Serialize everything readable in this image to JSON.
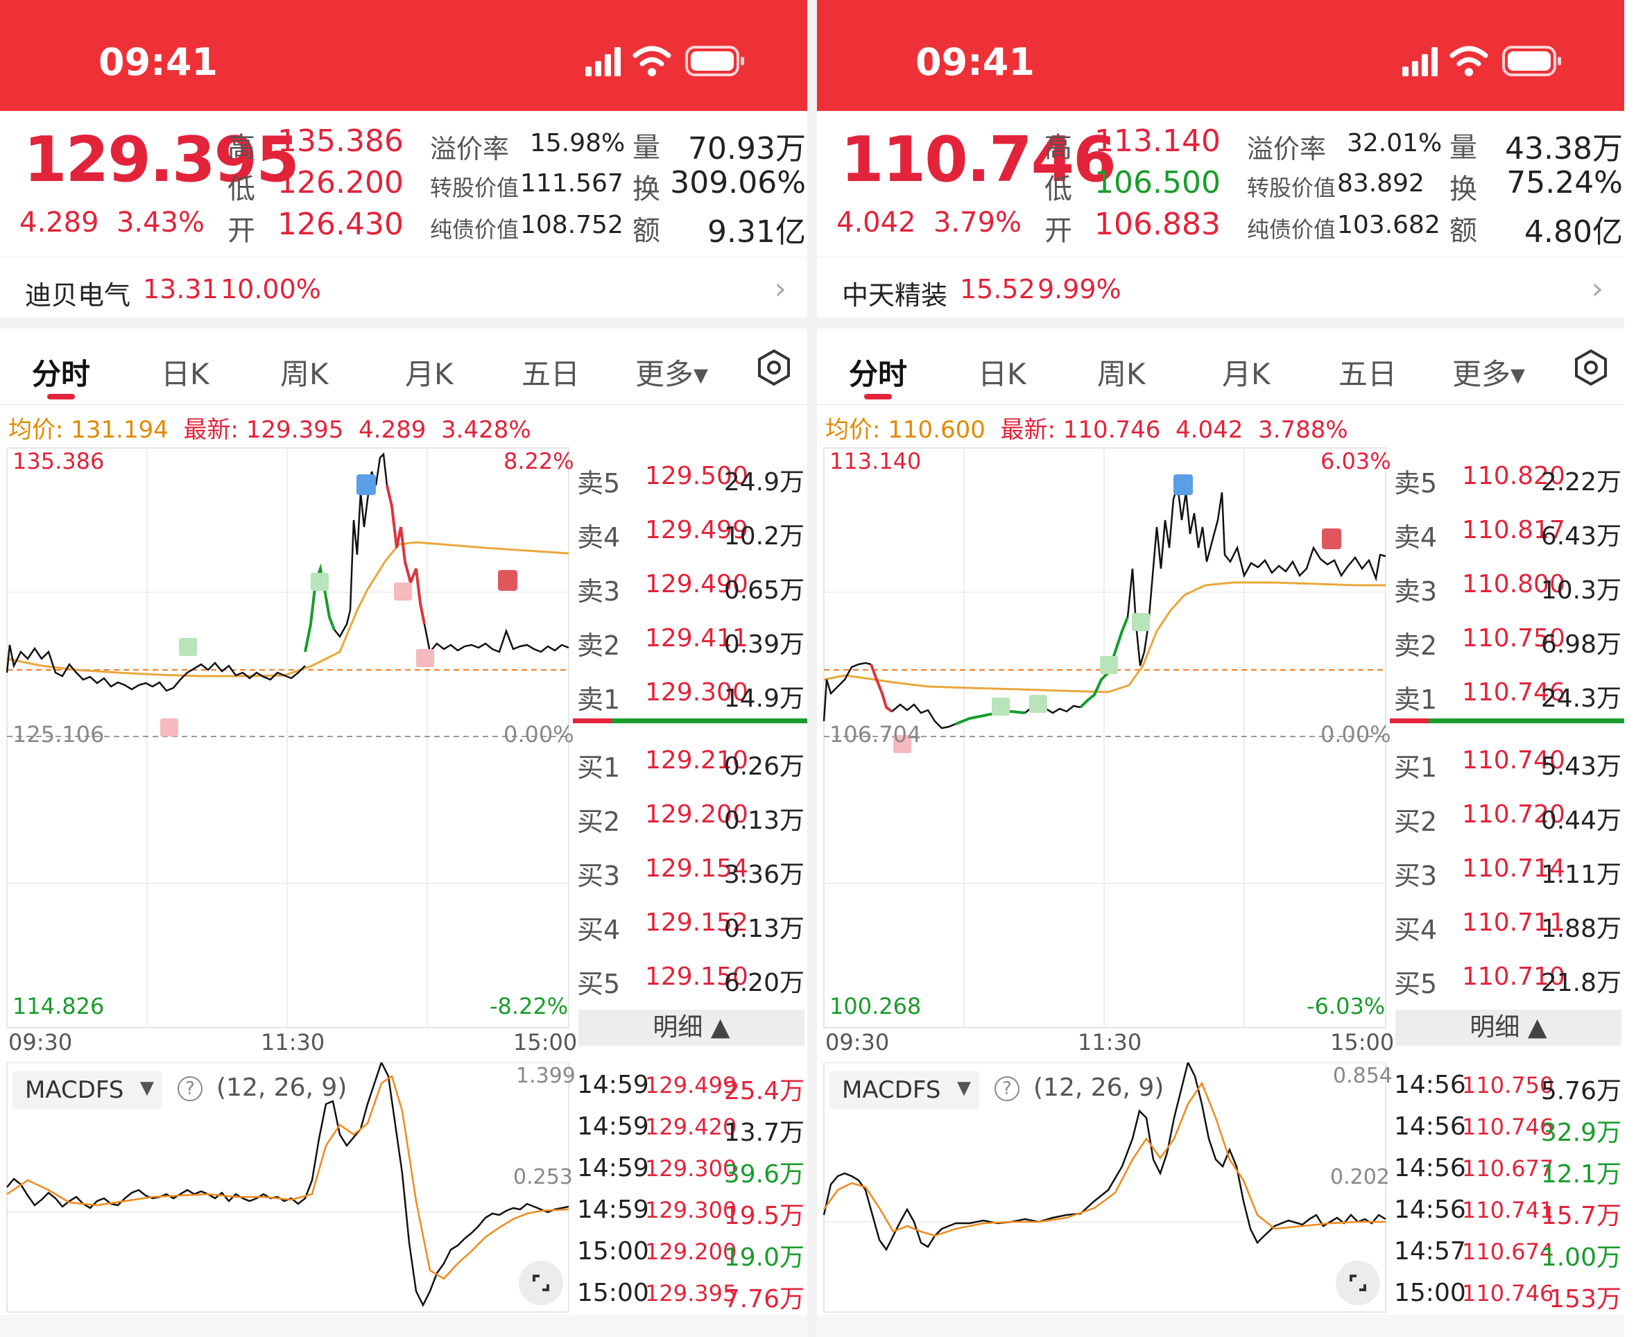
{
  "status_time": "09:41",
  "colors": {
    "red": "#e2233a",
    "green": "#199c2c",
    "avg": "#e9a73a",
    "header": "#ee3137"
  },
  "tabs": [
    "分时",
    "日K",
    "周K",
    "月K",
    "五日",
    "更多▾"
  ],
  "labels": {
    "high": "高",
    "low": "低",
    "open": "开",
    "premium": "溢价率",
    "conv": "转股价值",
    "bond": "纯债价值",
    "vol": "量",
    "turn": "换",
    "amt": "额",
    "avg_prefix": "均价:",
    "last_prefix": "最新:",
    "mingxi": "明细",
    "macd": "MACDFS",
    "params": "(12, 26, 9)",
    "t_open": "09:30",
    "t_mid": "11:30",
    "t_close": "15:00"
  },
  "panes": [
    {
      "price": "129.395",
      "change": "4.289",
      "change_pct": "3.43%",
      "high": "135.386",
      "low": "126.200",
      "open": "126.430",
      "low_green": false,
      "premium": "15.98%",
      "conv_value": "111.567",
      "bond_value": "108.752",
      "volume": "70.93万",
      "turnover": "309.06%",
      "amount": "9.31亿",
      "stock_name": "迪贝电气",
      "stock_price": "13.31",
      "stock_pct": "10.00%",
      "avg_val": "131.194",
      "last_val": "129.395",
      "last_chg": "4.289",
      "last_pct": "3.428%",
      "axis": {
        "top": "135.386",
        "top_pct": "8.22%",
        "mid": "125.106",
        "mid_pct": "0.00%",
        "bot": "114.826",
        "bot_pct": "-8.22%",
        "macd_top": "1.399",
        "macd_mid": "0.253"
      },
      "asks": [
        {
          "k": "卖5",
          "p": "129.500",
          "v": "24.9万"
        },
        {
          "k": "卖4",
          "p": "129.499",
          "v": "10.2万"
        },
        {
          "k": "卖3",
          "p": "129.490",
          "v": "0.65万"
        },
        {
          "k": "卖2",
          "p": "129.411",
          "v": "0.39万"
        },
        {
          "k": "卖1",
          "p": "129.300",
          "v": "14.9万"
        }
      ],
      "bids": [
        {
          "k": "买1",
          "p": "129.210",
          "v": "0.26万"
        },
        {
          "k": "买2",
          "p": "129.200",
          "v": "0.13万"
        },
        {
          "k": "买3",
          "p": "129.154",
          "v": "3.36万"
        },
        {
          "k": "买4",
          "p": "129.152",
          "v": "0.13万"
        },
        {
          "k": "买5",
          "p": "129.150",
          "v": "6.20万"
        }
      ],
      "ticks": [
        {
          "t": "14:59",
          "p": "129.499",
          "v": "25.4万",
          "c": "red"
        },
        {
          "t": "14:59",
          "p": "129.420",
          "v": "13.7万",
          "c": "blk"
        },
        {
          "t": "14:59",
          "p": "129.300",
          "v": "39.6万",
          "c": "grn"
        },
        {
          "t": "14:59",
          "p": "129.300",
          "v": "19.5万",
          "c": "red"
        },
        {
          "t": "15:00",
          "p": "129.200",
          "v": "19.0万",
          "c": "grn"
        },
        {
          "t": "15:00",
          "p": "129.395",
          "v": "7.76万",
          "c": "red"
        }
      ]
    },
    {
      "price": "110.746",
      "change": "4.042",
      "change_pct": "3.79%",
      "high": "113.140",
      "low": "106.500",
      "open": "106.883",
      "low_green": true,
      "premium": "32.01%",
      "conv_value": "83.892",
      "bond_value": "103.682",
      "volume": "43.38万",
      "turnover": "75.24%",
      "amount": "4.80亿",
      "stock_name": "中天精装",
      "stock_price": "15.52",
      "stock_pct": "9.99%",
      "avg_val": "110.600",
      "last_val": "110.746",
      "last_chg": "4.042",
      "last_pct": "3.788%",
      "axis": {
        "top": "113.140",
        "top_pct": "6.03%",
        "mid": "106.704",
        "mid_pct": "0.00%",
        "bot": "100.268",
        "bot_pct": "-6.03%",
        "macd_top": "0.854",
        "macd_mid": "0.202"
      },
      "asks": [
        {
          "k": "卖5",
          "p": "110.820",
          "v": "2.22万"
        },
        {
          "k": "卖4",
          "p": "110.817",
          "v": "6.43万"
        },
        {
          "k": "卖3",
          "p": "110.800",
          "v": "10.3万"
        },
        {
          "k": "卖2",
          "p": "110.750",
          "v": "6.98万"
        },
        {
          "k": "卖1",
          "p": "110.746",
          "v": "24.3万"
        }
      ],
      "bids": [
        {
          "k": "买1",
          "p": "110.740",
          "v": "5.43万"
        },
        {
          "k": "买2",
          "p": "110.720",
          "v": "0.44万"
        },
        {
          "k": "买3",
          "p": "110.714",
          "v": "1.11万"
        },
        {
          "k": "买4",
          "p": "110.711",
          "v": "1.88万"
        },
        {
          "k": "买5",
          "p": "110.710",
          "v": "21.8万"
        }
      ],
      "ticks": [
        {
          "t": "14:56",
          "p": "110.750",
          "v": "5.76万",
          "c": "blk"
        },
        {
          "t": "14:56",
          "p": "110.746",
          "v": "32.9万",
          "c": "grn"
        },
        {
          "t": "14:56",
          "p": "110.677",
          "v": "12.1万",
          "c": "grn"
        },
        {
          "t": "14:56",
          "p": "110.741",
          "v": "15.7万",
          "c": "red"
        },
        {
          "t": "14:57",
          "p": "110.674",
          "v": "1.00万",
          "c": "grn"
        },
        {
          "t": "15:00",
          "p": "110.746",
          "v": "153万",
          "c": "red"
        }
      ]
    }
  ]
}
